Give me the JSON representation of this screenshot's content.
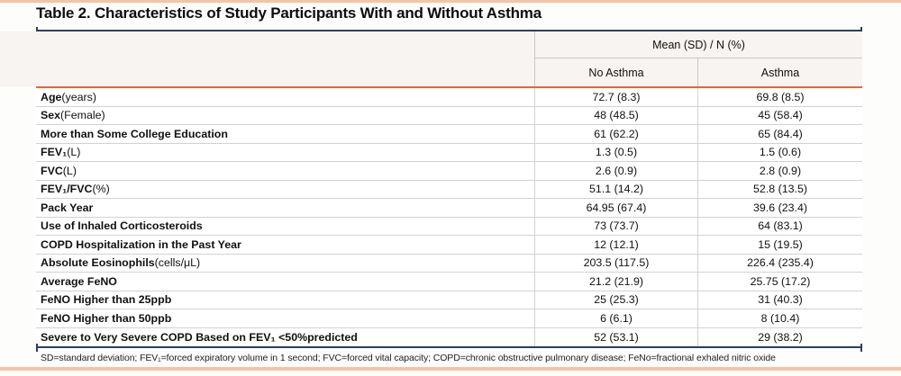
{
  "title": "Table 2. Characteristics of Study Participants With and Without Asthma",
  "header": {
    "group": "Mean (SD) / N (%)",
    "col_no_asthma": "No Asthma",
    "col_asthma": "Asthma"
  },
  "rows": [
    {
      "label_bold": "Age",
      "label_normal": " (years)",
      "no_asthma": "72.7 (8.3)",
      "asthma": "69.8 (8.5)"
    },
    {
      "label_bold": "Sex",
      "label_normal": " (Female)",
      "no_asthma": "48 (48.5)",
      "asthma": "45 (58.4)"
    },
    {
      "label_bold": "More than Some College Education",
      "label_normal": "",
      "no_asthma": "61 (62.2)",
      "asthma": "65 (84.4)"
    },
    {
      "label_bold": "FEV₁",
      "label_normal": " (L)",
      "no_asthma": "1.3 (0.5)",
      "asthma": "1.5 (0.6)"
    },
    {
      "label_bold": "FVC",
      "label_normal": " (L)",
      "no_asthma": "2.6 (0.9)",
      "asthma": "2.8 (0.9)"
    },
    {
      "label_bold": "FEV₁/FVC",
      "label_normal": " (%)",
      "no_asthma": "51.1 (14.2)",
      "asthma": "52.8 (13.5)"
    },
    {
      "label_bold": "Pack Year",
      "label_normal": "",
      "no_asthma": "64.95 (67.4)",
      "asthma": "39.6 (23.4)"
    },
    {
      "label_bold": "Use of Inhaled Corticosteroids",
      "label_normal": "",
      "no_asthma": "73 (73.7)",
      "asthma": "64 (83.1)"
    },
    {
      "label_bold": "COPD Hospitalization in the Past Year",
      "label_normal": "",
      "no_asthma": "12 (12.1)",
      "asthma": "15 (19.5)"
    },
    {
      "label_bold": "Absolute Eosinophils",
      "label_normal": " (cells/μL)",
      "no_asthma": "203.5 (117.5)",
      "asthma": "226.4 (235.4)"
    },
    {
      "label_bold": "Average FeNO",
      "label_normal": "",
      "no_asthma": "21.2 (21.9)",
      "asthma": "25.75 (17.2)"
    },
    {
      "label_bold": "FeNO Higher than 25ppb",
      "label_normal": "",
      "no_asthma": "25 (25.3)",
      "asthma": "31 (40.3)"
    },
    {
      "label_bold": "FeNO Higher than 50ppb",
      "label_normal": "",
      "no_asthma": "6 (6.1)",
      "asthma": "8 (10.4)"
    },
    {
      "label_bold": "Severe to Very Severe COPD Based on FEV₁ <50%predicted",
      "label_normal": "",
      "no_asthma": "52 (53.1)",
      "asthma": "29 (38.2)"
    }
  ],
  "footnote": "SD=standard deviation; FEV₁=forced expiratory volume in 1 second; FVC=forced vital capacity; COPD=chronic obstructive pulmonary disease; FeNo=fractional exhaled nitric oxide",
  "colors": {
    "accent_navy": "#2d3e5f",
    "accent_orange": "#e8653a",
    "accent_salmon": "#f6c3a4",
    "header_bg": "#f8f4f1"
  }
}
